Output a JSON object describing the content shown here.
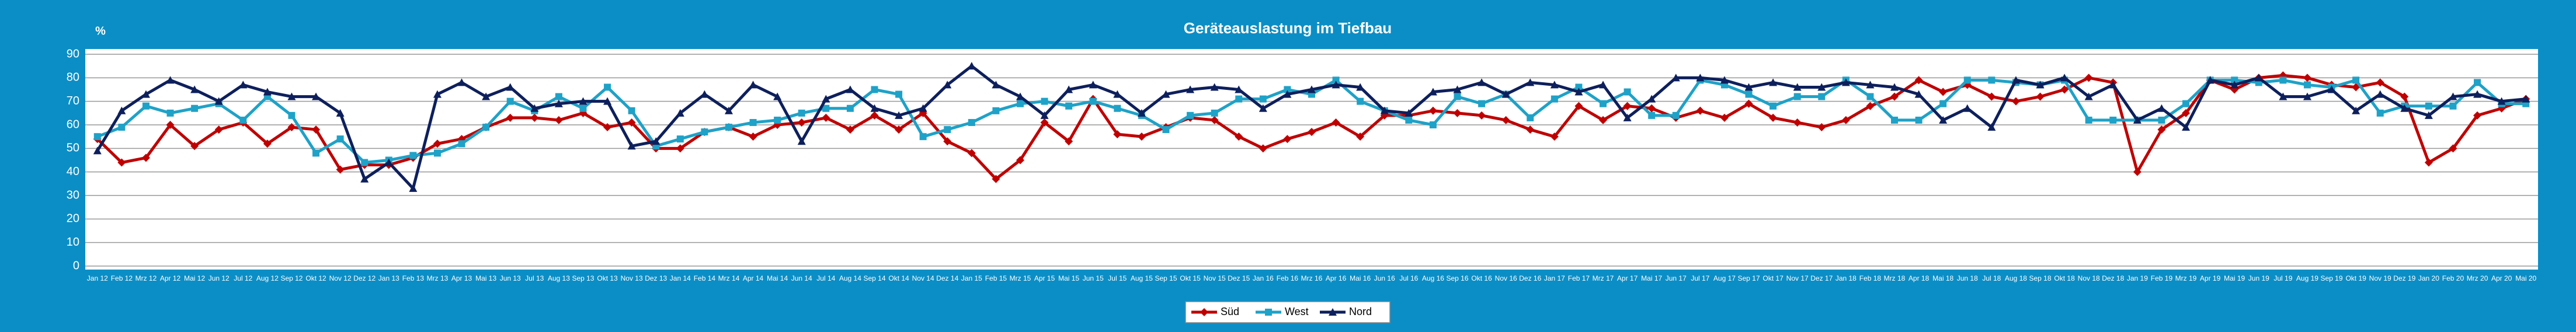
{
  "chart_data": {
    "type": "line",
    "title": "Geräteauslastung im Tiefbau",
    "y_label": "%",
    "categories": [
      "Jan 12",
      "Feb 12",
      "Mrz 12",
      "Apr 12",
      "Mai 12",
      "Jun 12",
      "Jul 12",
      "Aug 12",
      "Sep 12",
      "Okt 12",
      "Nov 12",
      "Dez 12",
      "Jan 13",
      "Feb 13",
      "Mrz 13",
      "Apr 13",
      "Mai 13",
      "Jun 13",
      "Jul 13",
      "Aug 13",
      "Sep 13",
      "Okt 13",
      "Nov 13",
      "Dez 13",
      "Jan 14",
      "Feb 14",
      "Mrz 14",
      "Apr 14",
      "Mai 14",
      "Jun 14",
      "Jul 14",
      "Aug 14",
      "Sep 14",
      "Okt 14",
      "Nov 14",
      "Dez 14",
      "Jan 15",
      "Feb 15",
      "Mrz 15",
      "Apr 15",
      "Mai 15",
      "Jun 15",
      "Jul 15",
      "Aug 15",
      "Sep 15",
      "Okt 15",
      "Nov 15",
      "Dez 15",
      "Jan 16",
      "Feb 16",
      "Mrz 16",
      "Apr 16",
      "Mai 16",
      "Jun 16",
      "Jul 16",
      "Aug 16",
      "Sep 16",
      "Okt 16",
      "Nov 16",
      "Dez 16",
      "Jan 17",
      "Feb 17",
      "Mrz 17",
      "Apr 17",
      "Mai 17",
      "Jun 17",
      "Jul 17",
      "Aug 17",
      "Sep 17",
      "Okt 17",
      "Nov 17",
      "Dez 17",
      "Jan 18",
      "Feb 18",
      "Mrz 18",
      "Apr 18",
      "Mai 18",
      "Jun 18",
      "Jul 18",
      "Aug 18",
      "Sep 18",
      "Okt 18",
      "Nov 18",
      "Dez 18",
      "Jan 19",
      "Feb 19",
      "Mrz 19",
      "Apr 19",
      "Mai 19",
      "Jun 19",
      "Jul 19",
      "Aug 19",
      "Sep 19",
      "Okt 19",
      "Nov 19",
      "Dez 19",
      "Jan 20",
      "Feb 20",
      "Mrz 20",
      "Apr 20",
      "Mai 20"
    ],
    "series": [
      {
        "name": "Süd",
        "color": "#c00000",
        "marker": "diamond",
        "values": [
          54,
          44,
          46,
          60,
          51,
          58,
          61,
          52,
          59,
          58,
          41,
          43,
          43,
          46,
          52,
          54,
          59,
          63,
          63,
          62,
          65,
          59,
          61,
          50,
          50,
          57,
          59,
          55,
          60,
          61,
          63,
          58,
          64,
          58,
          65,
          53,
          48,
          37,
          45,
          61,
          53,
          71,
          56,
          55,
          59,
          63,
          62,
          55,
          50,
          54,
          57,
          61,
          55,
          64,
          64,
          66,
          65,
          64,
          62,
          58,
          55,
          68,
          62,
          68,
          67,
          63,
          66,
          63,
          69,
          63,
          61,
          59,
          62,
          68,
          72,
          79,
          74,
          77,
          72,
          70,
          72,
          75,
          80,
          78,
          40,
          58,
          65,
          79,
          75,
          80,
          81,
          80,
          77,
          76,
          78,
          72,
          44,
          50,
          64,
          67,
          71
        ]
      },
      {
        "name": "West",
        "color": "#1ea2c8",
        "marker": "square",
        "values": [
          55,
          59,
          68,
          65,
          67,
          69,
          62,
          72,
          64,
          48,
          54,
          44,
          45,
          47,
          48,
          52,
          59,
          70,
          66,
          72,
          67,
          76,
          66,
          51,
          54,
          57,
          59,
          61,
          62,
          65,
          67,
          67,
          75,
          73,
          55,
          58,
          61,
          66,
          69,
          70,
          68,
          70,
          67,
          64,
          58,
          64,
          65,
          71,
          71,
          75,
          73,
          79,
          70,
          66,
          62,
          60,
          72,
          69,
          73,
          63,
          71,
          76,
          69,
          74,
          64,
          64,
          79,
          77,
          73,
          68,
          72,
          72,
          79,
          72,
          62,
          62,
          69,
          79,
          79,
          78,
          77,
          79,
          62,
          62,
          62,
          62,
          69,
          79,
          79,
          78,
          79,
          77,
          76,
          79,
          65,
          68,
          68,
          68,
          78,
          69,
          69
        ]
      },
      {
        "name": "Nord",
        "color": "#0d1f5c",
        "marker": "triangle",
        "values": [
          49,
          66,
          73,
          79,
          75,
          70,
          77,
          74,
          72,
          72,
          65,
          37,
          44,
          33,
          73,
          78,
          72,
          76,
          67,
          69,
          70,
          70,
          51,
          53,
          65,
          73,
          66,
          77,
          72,
          53,
          71,
          75,
          67,
          64,
          67,
          77,
          85,
          77,
          72,
          64,
          75,
          77,
          73,
          65,
          73,
          75,
          76,
          75,
          67,
          73,
          75,
          77,
          76,
          66,
          65,
          74,
          75,
          78,
          73,
          78,
          77,
          74,
          77,
          63,
          71,
          80,
          80,
          79,
          76,
          78,
          76,
          76,
          78,
          77,
          76,
          73,
          62,
          67,
          59,
          79,
          77,
          80,
          72,
          77,
          62,
          67,
          59,
          79,
          77,
          80,
          72,
          72,
          75,
          66,
          73,
          67,
          64,
          72,
          73,
          70,
          71
        ]
      }
    ],
    "ylim": [
      0,
      90
    ],
    "yticks": [
      0,
      10,
      20,
      30,
      40,
      50,
      60,
      70,
      80,
      90
    ],
    "grid": true,
    "legend": "bottom"
  }
}
